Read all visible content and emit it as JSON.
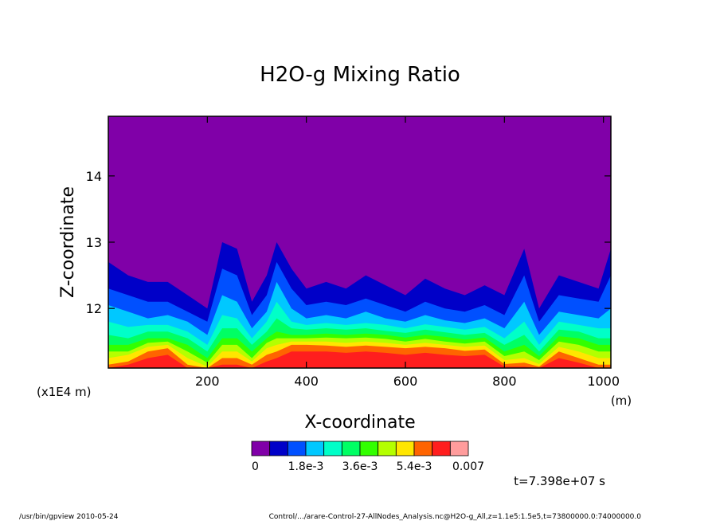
{
  "chart_data": {
    "type": "heatmap",
    "title": "H2O-g Mixing Ratio",
    "xlabel": "X-coordinate",
    "ylabel": "Z-coordinate",
    "x_unit": "(m)",
    "y_unit": "(x1E4 m)",
    "xlim": [
      0,
      1015
    ],
    "ylim": [
      11.1,
      14.9
    ],
    "x_ticks": [
      "200",
      "400",
      "600",
      "800",
      "1000"
    ],
    "y_ticks": [
      "12",
      "13",
      "14"
    ],
    "colorbar": {
      "colors": [
        "#8000a8",
        "#0000c8",
        "#0050ff",
        "#00c8ff",
        "#00ffc8",
        "#00ff64",
        "#32ff00",
        "#b4ff00",
        "#ffe600",
        "#ff6400",
        "#ff1e1e",
        "#ff9c9c"
      ],
      "labels": [
        "0",
        "1.8e-3",
        "3.6e-3",
        "5.4e-3",
        "0.007"
      ]
    },
    "band_levels": [
      {
        "x": 0,
        "levels": [
          12.7,
          12.3,
          12.05,
          11.8,
          11.6,
          11.45,
          11.35,
          11.25,
          11.15,
          11.1,
          11.1
        ]
      },
      {
        "x": 40,
        "levels": [
          12.5,
          12.2,
          11.95,
          11.72,
          11.55,
          11.45,
          11.35,
          11.3,
          11.2,
          11.15,
          11.1
        ]
      },
      {
        "x": 80,
        "levels": [
          12.4,
          12.1,
          11.85,
          11.75,
          11.65,
          11.55,
          11.48,
          11.42,
          11.35,
          11.25,
          11.1
        ]
      },
      {
        "x": 120,
        "levels": [
          12.4,
          12.1,
          11.9,
          11.75,
          11.65,
          11.55,
          11.5,
          11.45,
          11.4,
          11.3,
          11.1
        ]
      },
      {
        "x": 160,
        "levels": [
          12.2,
          11.95,
          11.8,
          11.65,
          11.55,
          11.45,
          11.35,
          11.25,
          11.15,
          11.1,
          11.1
        ]
      },
      {
        "x": 200,
        "levels": [
          12.0,
          11.8,
          11.6,
          11.45,
          11.35,
          11.25,
          11.18,
          11.12,
          11.1,
          11.1,
          11.1
        ]
      },
      {
        "x": 230,
        "levels": [
          13.0,
          12.6,
          12.2,
          11.9,
          11.7,
          11.55,
          11.45,
          11.35,
          11.25,
          11.15,
          11.1
        ]
      },
      {
        "x": 260,
        "levels": [
          12.9,
          12.5,
          12.1,
          11.85,
          11.7,
          11.55,
          11.45,
          11.35,
          11.25,
          11.15,
          11.1
        ]
      },
      {
        "x": 290,
        "levels": [
          12.1,
          11.9,
          11.7,
          11.55,
          11.45,
          11.35,
          11.25,
          11.2,
          11.15,
          11.1,
          11.1
        ]
      },
      {
        "x": 320,
        "levels": [
          12.5,
          12.2,
          11.95,
          11.8,
          11.65,
          11.55,
          11.48,
          11.4,
          11.3,
          11.2,
          11.1
        ]
      },
      {
        "x": 340,
        "levels": [
          13.0,
          12.7,
          12.4,
          12.1,
          11.85,
          11.65,
          11.55,
          11.45,
          11.35,
          11.25,
          11.1
        ]
      },
      {
        "x": 370,
        "levels": [
          12.6,
          12.3,
          12.0,
          11.8,
          11.7,
          11.6,
          11.55,
          11.5,
          11.45,
          11.35,
          11.1
        ]
      },
      {
        "x": 400,
        "levels": [
          12.3,
          12.05,
          11.85,
          11.75,
          11.68,
          11.6,
          11.55,
          11.5,
          11.45,
          11.35,
          11.1
        ]
      },
      {
        "x": 440,
        "levels": [
          12.4,
          12.1,
          11.9,
          11.78,
          11.7,
          11.62,
          11.56,
          11.5,
          11.44,
          11.35,
          11.1
        ]
      },
      {
        "x": 480,
        "levels": [
          12.3,
          12.05,
          11.85,
          11.75,
          11.68,
          11.6,
          11.55,
          11.48,
          11.42,
          11.33,
          11.1
        ]
      },
      {
        "x": 520,
        "levels": [
          12.5,
          12.15,
          11.95,
          11.78,
          11.7,
          11.62,
          11.56,
          11.5,
          11.44,
          11.35,
          11.1
        ]
      },
      {
        "x": 560,
        "levels": [
          12.35,
          12.05,
          11.85,
          11.75,
          11.66,
          11.6,
          11.54,
          11.48,
          11.42,
          11.33,
          11.1
        ]
      },
      {
        "x": 600,
        "levels": [
          12.2,
          11.95,
          11.8,
          11.7,
          11.63,
          11.56,
          11.5,
          11.45,
          11.4,
          11.3,
          11.1
        ]
      },
      {
        "x": 640,
        "levels": [
          12.45,
          12.1,
          11.9,
          11.76,
          11.68,
          11.6,
          11.54,
          11.48,
          11.42,
          11.33,
          11.1
        ]
      },
      {
        "x": 680,
        "levels": [
          12.3,
          12.0,
          11.82,
          11.72,
          11.64,
          11.57,
          11.5,
          11.45,
          11.4,
          11.3,
          11.1
        ]
      },
      {
        "x": 720,
        "levels": [
          12.2,
          11.95,
          11.78,
          11.68,
          11.6,
          11.53,
          11.47,
          11.42,
          11.36,
          11.28,
          11.1
        ]
      },
      {
        "x": 760,
        "levels": [
          12.35,
          12.05,
          11.85,
          11.72,
          11.63,
          11.56,
          11.5,
          11.44,
          11.38,
          11.3,
          11.1
        ]
      },
      {
        "x": 800,
        "levels": [
          12.2,
          11.9,
          11.7,
          11.55,
          11.45,
          11.35,
          11.28,
          11.22,
          11.16,
          11.12,
          11.1
        ]
      },
      {
        "x": 840,
        "levels": [
          12.9,
          12.5,
          12.1,
          11.8,
          11.6,
          11.45,
          11.35,
          11.25,
          11.18,
          11.12,
          11.1
        ]
      },
      {
        "x": 870,
        "levels": [
          12.0,
          11.8,
          11.6,
          11.45,
          11.35,
          11.28,
          11.22,
          11.16,
          11.12,
          11.1,
          11.1
        ]
      },
      {
        "x": 910,
        "levels": [
          12.5,
          12.2,
          11.95,
          11.8,
          11.68,
          11.58,
          11.5,
          11.42,
          11.35,
          11.25,
          11.1
        ]
      },
      {
        "x": 950,
        "levels": [
          12.4,
          12.15,
          11.9,
          11.75,
          11.65,
          11.55,
          11.45,
          11.35,
          11.25,
          11.18,
          11.1
        ]
      },
      {
        "x": 990,
        "levels": [
          12.3,
          12.1,
          11.85,
          11.7,
          11.55,
          11.45,
          11.35,
          11.25,
          11.15,
          11.1,
          11.1
        ]
      },
      {
        "x": 1015,
        "levels": [
          12.9,
          12.5,
          12.0,
          11.7,
          11.55,
          11.45,
          11.35,
          11.25,
          11.15,
          11.1,
          11.1
        ]
      }
    ]
  },
  "time_label": "t=7.398e+07 s",
  "footer_left": "/usr/bin/gpview   2010-05-24",
  "footer_right": "Control/.../arare-Control-27-AllNodes_Analysis.nc@H2O-g_All,z=1.1e5:1.5e5,t=73800000.0:74000000.0"
}
